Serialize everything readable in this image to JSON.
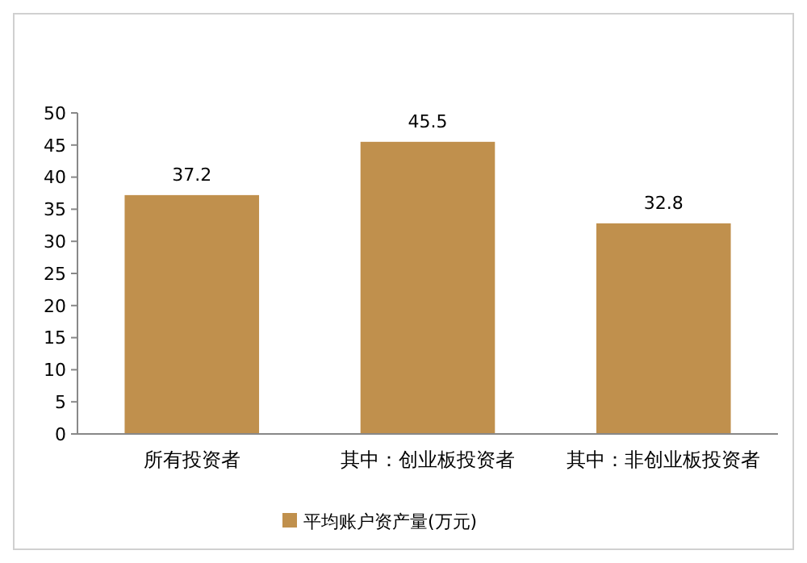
{
  "chart_data": {
    "type": "bar",
    "categories": [
      "所有投资者",
      "其中：创业板投资者",
      "其中：非创业板投资者"
    ],
    "series": [
      {
        "name": "平均账户资产量(万元)",
        "color": "#c0904d",
        "values": [
          37.2,
          45.5,
          32.8
        ]
      }
    ],
    "ylim": [
      0,
      50
    ],
    "yticks": [
      0,
      5,
      10,
      15,
      20,
      25,
      30,
      35,
      40,
      45,
      50
    ],
    "data_labels": true,
    "legend": "bottom"
  }
}
